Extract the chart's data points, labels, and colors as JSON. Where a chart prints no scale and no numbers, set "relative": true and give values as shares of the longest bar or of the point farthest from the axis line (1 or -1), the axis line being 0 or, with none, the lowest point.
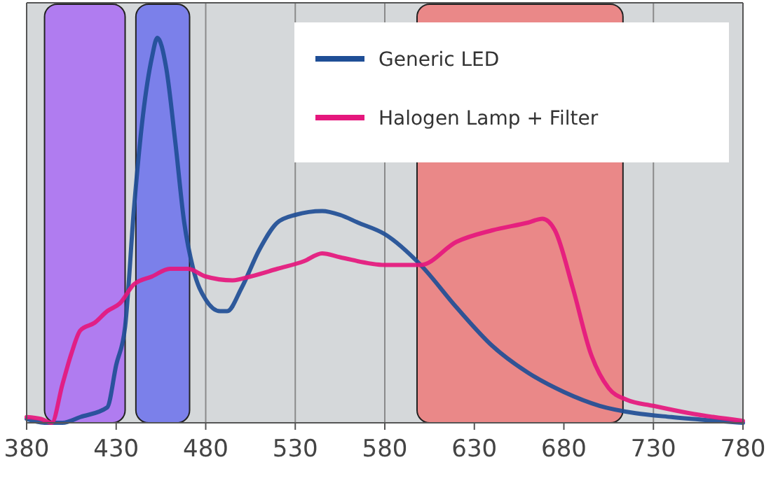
{
  "chart_data": {
    "type": "line",
    "relative": true,
    "xlim": [
      380,
      780
    ],
    "xticks": [
      380,
      430,
      480,
      530,
      580,
      630,
      680,
      730,
      780
    ],
    "grid": "x",
    "legend": "top right",
    "bands": [
      {
        "axis": "x",
        "from": 390,
        "to": 435,
        "color": "#b07cf0"
      },
      {
        "axis": "x",
        "from": 441,
        "to": 471,
        "color": "#7b80ea"
      },
      {
        "axis": "x",
        "from": 598,
        "to": 713,
        "color": "#ea8888"
      }
    ],
    "series": [
      {
        "name": "Generic LED",
        "color": "#1f4e96",
        "x": [
          380,
          390,
          400,
          410,
          425,
          430,
          435,
          440,
          445,
          450,
          453,
          458,
          463,
          468,
          473,
          480,
          488,
          492,
          500,
          510,
          520,
          530,
          545,
          555,
          565,
          580,
          600,
          620,
          640,
          660,
          680,
          700,
          720,
          740,
          760,
          780
        ],
        "values": [
          0.01,
          0,
          0,
          0.015,
          0.04,
          0.15,
          0.25,
          0.56,
          0.8,
          0.95,
          1,
          0.92,
          0.73,
          0.52,
          0.4,
          0.32,
          0.29,
          0.29,
          0.35,
          0.45,
          0.52,
          0.54,
          0.55,
          0.54,
          0.52,
          0.49,
          0.41,
          0.3,
          0.2,
          0.13,
          0.08,
          0.044,
          0.025,
          0.015,
          0.007,
          0
        ]
      },
      {
        "name": "Halogen Lamp + Filter",
        "color": "#e5177d",
        "x": [
          380,
          388,
          394,
          400,
          405,
          410,
          418,
          425,
          432,
          440,
          450,
          460,
          470,
          480,
          495,
          505,
          520,
          535,
          545,
          555,
          580,
          590,
          600,
          620,
          640,
          660,
          668,
          675,
          685,
          695,
          705,
          715,
          730,
          750,
          780
        ],
        "values": [
          0.015,
          0.01,
          0,
          0.1,
          0.18,
          0.24,
          0.26,
          0.29,
          0.31,
          0.36,
          0.38,
          0.4,
          0.4,
          0.38,
          0.37,
          0.38,
          0.4,
          0.42,
          0.44,
          0.43,
          0.41,
          0.41,
          0.41,
          0.47,
          0.5,
          0.52,
          0.53,
          0.5,
          0.35,
          0.18,
          0.09,
          0.06,
          0.044,
          0.025,
          0.005
        ]
      }
    ]
  }
}
